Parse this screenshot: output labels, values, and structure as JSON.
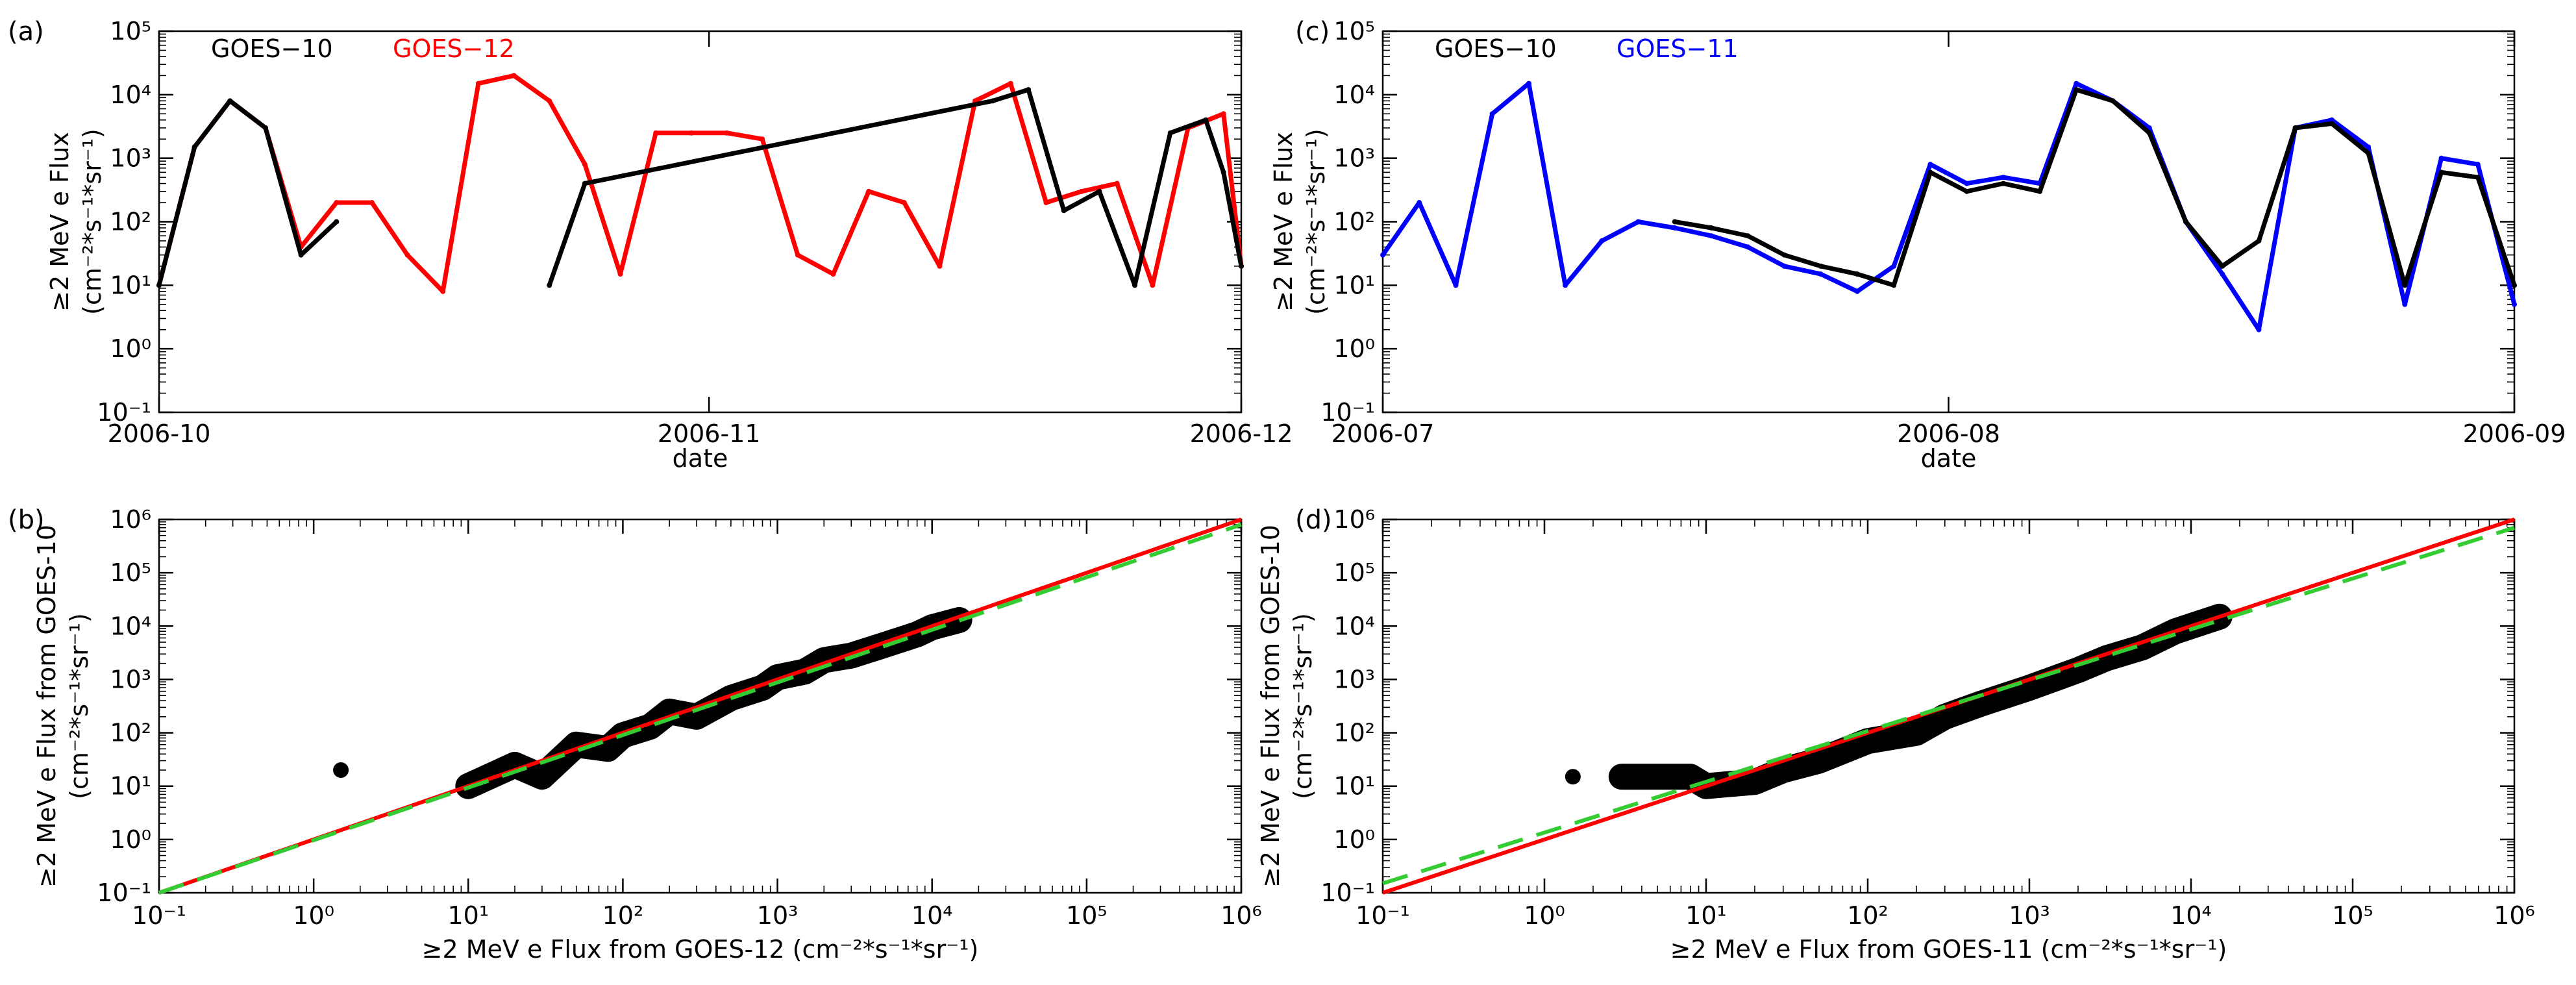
{
  "chart_data": [
    {
      "panel": "(a)",
      "type": "line",
      "xlabel": "date",
      "ylabel": "≥2 MeV e Flux",
      "ylabel_units": "(cm⁻²*s⁻¹*sr⁻¹)",
      "y_scale": "log",
      "ylim": [
        0.1,
        100000
      ],
      "xlim": [
        "2006-10-01",
        "2006-12-01"
      ],
      "x_ticks": [
        "2006-10",
        "2006-11",
        "2006-12"
      ],
      "y_ticks": [
        "10⁻¹",
        "10⁰",
        "10¹",
        "10²",
        "10³",
        "10⁴",
        "10⁵"
      ],
      "legend": [
        "GOES−10",
        "GOES−12"
      ],
      "legend_colors": [
        "#000000",
        "#ff0000"
      ],
      "series": [
        {
          "name": "GOES−12",
          "color": "#ff0000",
          "x": [
            "2006-10-01",
            "2006-10-03",
            "2006-10-05",
            "2006-10-07",
            "2006-10-09",
            "2006-10-11",
            "2006-10-13",
            "2006-10-15",
            "2006-10-17",
            "2006-10-19",
            "2006-10-21",
            "2006-10-23",
            "2006-10-25",
            "2006-10-27",
            "2006-10-29",
            "2006-10-31",
            "2006-11-02",
            "2006-11-04",
            "2006-11-06",
            "2006-11-08",
            "2006-11-10",
            "2006-11-12",
            "2006-11-14",
            "2006-11-16",
            "2006-11-18",
            "2006-11-20",
            "2006-11-22",
            "2006-11-24",
            "2006-11-26",
            "2006-11-28",
            "2006-11-30",
            "2006-12-01"
          ],
          "y": [
            10,
            1500,
            8000,
            3000,
            40,
            200,
            200,
            30,
            8,
            15000,
            20000,
            8000,
            800,
            15,
            2500,
            2500,
            2500,
            2000,
            30,
            15,
            300,
            200,
            20,
            8000,
            15000,
            200,
            300,
            400,
            10,
            3000,
            5000,
            20
          ]
        },
        {
          "name": "GOES−10",
          "color": "#000000",
          "x": [
            "2006-10-01",
            "2006-10-03",
            "2006-10-05",
            "2006-10-07",
            "2006-10-09",
            "2006-10-11",
            "2006-10-21",
            "2006-10-23",
            "2006-10-25",
            "2006-11-17",
            "2006-11-19",
            "2006-11-21",
            "2006-11-23",
            "2006-11-25",
            "2006-11-27",
            "2006-11-29",
            "2006-11-30",
            "2006-12-01"
          ],
          "y": [
            10,
            1500,
            8000,
            3000,
            30,
            100,
            null,
            10,
            400,
            8000,
            12000,
            150,
            300,
            10,
            2500,
            4000,
            600,
            20
          ]
        }
      ]
    },
    {
      "panel": "(c)",
      "type": "line",
      "xlabel": "date",
      "ylabel": "≥2 MeV e Flux",
      "ylabel_units": "(cm⁻²*s⁻¹*sr⁻¹)",
      "y_scale": "log",
      "ylim": [
        0.1,
        100000
      ],
      "xlim": [
        "2006-07-01",
        "2006-09-01"
      ],
      "x_ticks": [
        "2006-07",
        "2006-08",
        "2006-09"
      ],
      "y_ticks": [
        "10⁻¹",
        "10⁰",
        "10¹",
        "10²",
        "10³",
        "10⁴",
        "10⁵"
      ],
      "legend": [
        "GOES−10",
        "GOES−11"
      ],
      "legend_colors": [
        "#000000",
        "#0000ff"
      ],
      "series": [
        {
          "name": "GOES−11",
          "color": "#0000ff",
          "x": [
            "2006-07-01",
            "2006-07-03",
            "2006-07-05",
            "2006-07-07",
            "2006-07-09",
            "2006-07-11",
            "2006-07-13",
            "2006-07-15",
            "2006-07-17",
            "2006-07-19",
            "2006-07-21",
            "2006-07-23",
            "2006-07-25",
            "2006-07-27",
            "2006-07-29",
            "2006-07-31",
            "2006-08-02",
            "2006-08-04",
            "2006-08-06",
            "2006-08-08",
            "2006-08-10",
            "2006-08-12",
            "2006-08-14",
            "2006-08-16",
            "2006-08-18",
            "2006-08-20",
            "2006-08-22",
            "2006-08-24",
            "2006-08-26",
            "2006-08-28",
            "2006-08-30",
            "2006-09-01"
          ],
          "y": [
            30,
            200,
            10,
            5000,
            15000,
            10,
            50,
            100,
            80,
            60,
            40,
            20,
            15,
            8,
            20,
            800,
            400,
            500,
            400,
            15000,
            8000,
            3000,
            100,
            15,
            2,
            3000,
            4000,
            1500,
            5,
            1000,
            800,
            5
          ]
        },
        {
          "name": "GOES−10",
          "color": "#000000",
          "x": [
            "2006-07-15",
            "2006-07-17",
            "2006-07-19",
            "2006-07-21",
            "2006-07-23",
            "2006-07-25",
            "2006-07-27",
            "2006-07-29",
            "2006-07-31",
            "2006-08-02",
            "2006-08-04",
            "2006-08-06",
            "2006-08-08",
            "2006-08-10",
            "2006-08-12",
            "2006-08-14",
            "2006-08-16",
            "2006-08-18",
            "2006-08-20",
            "2006-08-22",
            "2006-08-24",
            "2006-08-26",
            "2006-08-28",
            "2006-08-30",
            "2006-09-01"
          ],
          "y": [
            null,
            100,
            80,
            60,
            30,
            20,
            15,
            10,
            600,
            300,
            400,
            300,
            12000,
            8000,
            2500,
            100,
            20,
            50,
            3000,
            3500,
            1200,
            10,
            600,
            500,
            10
          ]
        }
      ]
    },
    {
      "panel": "(b)",
      "type": "scatter",
      "xlabel": "≥2 MeV e Flux from GOES-12 (cm⁻²*s⁻¹*sr⁻¹)",
      "ylabel": "≥2 MeV e Flux from GOES-10",
      "ylabel_units": "(cm⁻²*s⁻¹*sr⁻¹)",
      "x_scale": "log",
      "y_scale": "log",
      "xlim": [
        0.1,
        1000000
      ],
      "ylim": [
        0.1,
        1000000
      ],
      "x_ticks": [
        "10⁻¹",
        "10⁰",
        "10¹",
        "10²",
        "10³",
        "10⁴",
        "10⁵",
        "10⁶"
      ],
      "y_ticks": [
        "10⁻¹",
        "10⁰",
        "10¹",
        "10²",
        "10³",
        "10⁴",
        "10⁵",
        "10⁶"
      ],
      "points_x": [
        1.5,
        10,
        20,
        30,
        50,
        80,
        100,
        150,
        200,
        300,
        500,
        800,
        1000,
        1500,
        2000,
        3000,
        5000,
        8000,
        10000,
        15000
      ],
      "points_y": [
        20,
        10,
        25,
        15,
        60,
        50,
        90,
        130,
        250,
        200,
        450,
        700,
        1100,
        1400,
        2300,
        2800,
        4500,
        7000,
        9500,
        13000
      ],
      "lines": [
        {
          "name": "",
          "color": "#ff0000",
          "style": "solid",
          "x": [
            0.1,
            1000000
          ],
          "y": [
            0.1,
            1000000
          ]
        },
        {
          "name": "",
          "color": "#33cc33",
          "style": "dashed",
          "x": [
            0.1,
            1000000
          ],
          "y": [
            0.1,
            800000
          ]
        }
      ]
    },
    {
      "panel": "(d)",
      "type": "scatter",
      "xlabel": "≥2 MeV e Flux from GOES-11 (cm⁻²*s⁻¹*sr⁻¹)",
      "ylabel": "≥2 MeV e Flux from GOES-10",
      "ylabel_units": "(cm⁻²*s⁻¹*sr⁻¹)",
      "x_scale": "log",
      "y_scale": "log",
      "xlim": [
        0.1,
        1000000
      ],
      "ylim": [
        0.1,
        1000000
      ],
      "x_ticks": [
        "10⁻¹",
        "10⁰",
        "10¹",
        "10²",
        "10³",
        "10⁴",
        "10⁵",
        "10⁶"
      ],
      "y_ticks": [
        "10⁻¹",
        "10⁰",
        "10¹",
        "10²",
        "10³",
        "10⁴",
        "10⁵",
        "10⁶"
      ],
      "points_x": [
        1.5,
        3,
        5,
        8,
        10,
        20,
        30,
        50,
        100,
        200,
        300,
        500,
        1000,
        2000,
        3000,
        5000,
        8000,
        10000,
        15000
      ],
      "points_y": [
        15,
        15,
        15,
        15,
        10,
        12,
        20,
        30,
        70,
        100,
        200,
        350,
        700,
        1500,
        2500,
        4000,
        8000,
        10000,
        15000
      ],
      "lines": [
        {
          "name": "",
          "color": "#ff0000",
          "style": "solid",
          "x": [
            0.1,
            1000000
          ],
          "y": [
            0.1,
            1000000
          ]
        },
        {
          "name": "",
          "color": "#33cc33",
          "style": "dashed",
          "x": [
            0.1,
            1000000
          ],
          "y": [
            0.15,
            700000
          ]
        }
      ]
    }
  ]
}
